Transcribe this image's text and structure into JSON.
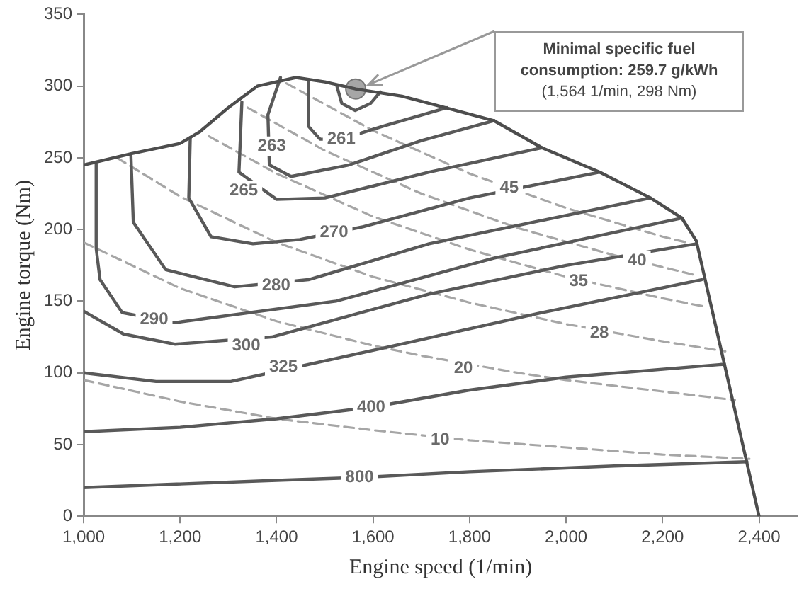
{
  "chart_data": {
    "type": "line",
    "xlabel": "Engine speed (1/min)",
    "ylabel": "Engine torque (Nm)",
    "xlim": [
      1000,
      2480
    ],
    "ylim": [
      0,
      350
    ],
    "xticks": [
      {
        "value": 1000,
        "label": "1,000"
      },
      {
        "value": 1200,
        "label": "1,200"
      },
      {
        "value": 1400,
        "label": "1,400"
      },
      {
        "value": 1600,
        "label": "1,600"
      },
      {
        "value": 1800,
        "label": "1,800"
      },
      {
        "value": 2000,
        "label": "2,000"
      },
      {
        "value": 2200,
        "label": "2,200"
      },
      {
        "value": 2400,
        "label": "2,400"
      }
    ],
    "yticks": [
      0,
      50,
      100,
      150,
      200,
      250,
      300,
      350
    ],
    "grid": false,
    "legend": false,
    "marker": "none",
    "line_style": "solid",
    "series": [
      {
        "color": "#4d4d4d",
        "x": [
          1000,
          1100,
          1200,
          1240,
          1300,
          1360,
          1440,
          1500,
          1564,
          1660,
          1750,
          1850,
          1950,
          2070,
          2175,
          2240,
          2270,
          2400
        ],
        "values": [
          245,
          253,
          260,
          268,
          285,
          300,
          306,
          303,
          298,
          293,
          285,
          276,
          257,
          240,
          222,
          208,
          192,
          0
        ]
      },
      {
        "color": "#595959",
        "x": [
          1525,
          1535,
          1563,
          1595,
          1615
        ],
        "values": [
          300,
          288,
          283,
          288,
          296
        ]
      },
      {
        "color": "#595959",
        "x": [
          1466,
          1466,
          1490,
          1534,
          1620,
          1753
        ],
        "values": [
          304,
          272,
          263,
          263,
          272,
          285
        ]
      },
      {
        "color": "#595959",
        "x": [
          1408,
          1382,
          1385,
          1430,
          1550,
          1700,
          1851
        ],
        "values": [
          306,
          280,
          245,
          237,
          245,
          262,
          276
        ]
      },
      {
        "color": "#595959",
        "x": [
          1328,
          1322,
          1400,
          1500,
          1716,
          1950
        ],
        "values": [
          289,
          240,
          221,
          222,
          240,
          257
        ]
      },
      {
        "color": "#595959",
        "x": [
          1221,
          1218,
          1264,
          1351,
          1448,
          1580,
          1800,
          2070
        ],
        "values": [
          264,
          222,
          195,
          190,
          193,
          202,
          222,
          240
        ]
      },
      {
        "color": "#595959",
        "x": [
          1098,
          1103,
          1170,
          1313,
          1466,
          1716,
          2175
        ],
        "values": [
          252,
          205,
          172,
          160,
          165,
          190,
          222
        ]
      },
      {
        "color": "#595959",
        "x": [
          1026,
          1026,
          1034,
          1080,
          1189,
          1523,
          1850,
          2241
        ],
        "values": [
          246,
          187,
          165,
          142,
          135,
          150,
          180,
          208
        ]
      },
      {
        "color": "#595959",
        "x": [
          1000,
          1083,
          1189,
          1390,
          1716,
          2000,
          2270
        ],
        "values": [
          143,
          127,
          120,
          125,
          155,
          175,
          190
        ]
      },
      {
        "color": "#595959",
        "x": [
          1000,
          1150,
          1305,
          1658,
          1950,
          2281
        ],
        "values": [
          100,
          94,
          94,
          120,
          142,
          165
        ]
      },
      {
        "color": "#595959",
        "x": [
          1000,
          1200,
          1400,
          1596,
          1800,
          2000,
          2328
        ],
        "values": [
          59,
          62,
          68,
          76,
          88,
          97,
          106
        ]
      },
      {
        "color": "#595959",
        "x": [
          1000,
          1400,
          1572,
          1800,
          2100,
          2375
        ],
        "values": [
          20,
          25,
          27,
          31,
          35,
          38
        ]
      },
      {
        "color": "#a6a6a6",
        "line_style": "dashed",
        "x": [
          1000,
          1200,
          1400,
          1600,
          1800,
          2000,
          2200,
          2380
        ],
        "values": [
          95,
          80,
          68,
          60,
          53,
          48,
          43,
          40
        ]
      },
      {
        "color": "#a6a6a6",
        "line_style": "dashed",
        "x": [
          1000,
          1200,
          1400,
          1600,
          1700,
          1900,
          2000,
          2200,
          2350
        ],
        "values": [
          191,
          159,
          136,
          119,
          112,
          100,
          95,
          87,
          81
        ]
      },
      {
        "color": "#a6a6a6",
        "line_style": "dashed",
        "x": [
          1069,
          1200,
          1400,
          1600,
          1800,
          2000,
          2200,
          2330
        ],
        "values": [
          250,
          223,
          191,
          167,
          149,
          134,
          122,
          115
        ]
      },
      {
        "color": "#a6a6a6",
        "line_style": "dashed",
        "x": [
          1260,
          1400,
          1600,
          1800,
          2000,
          2200,
          2290
        ],
        "values": [
          265,
          239,
          209,
          186,
          167,
          152,
          146
        ]
      },
      {
        "color": "#a6a6a6",
        "line_style": "dashed",
        "x": [
          1340,
          1500,
          1700,
          1900,
          2100,
          2270
        ],
        "values": [
          285,
          255,
          225,
          201,
          182,
          168
        ]
      },
      {
        "color": "#a6a6a6",
        "line_style": "dashed",
        "x": [
          1420,
          1600,
          1800,
          2000,
          2200,
          2250
        ],
        "values": [
          302,
          269,
          239,
          215,
          195,
          191
        ]
      },
      {
        "type": "scatter",
        "marker": "circle",
        "color": "#a6a6a6",
        "x": [
          1564
        ],
        "values": [
          298
        ]
      }
    ],
    "annotations": [
      "Minimal specific fuel consumption: 259.7 g/kWh",
      "(1,564 1/min, 298 Nm)",
      {
        "text": "261",
        "x": 1534,
        "y": 263
      },
      {
        "text": "263",
        "x": 1390,
        "y": 258
      },
      {
        "text": "265",
        "x": 1332,
        "y": 227
      },
      {
        "text": "270",
        "x": 1519,
        "y": 198
      },
      {
        "text": "280",
        "x": 1399,
        "y": 161
      },
      {
        "text": "290",
        "x": 1146,
        "y": 137
      },
      {
        "text": "300",
        "x": 1337,
        "y": 119
      },
      {
        "text": "325",
        "x": 1414,
        "y": 104
      },
      {
        "text": "400",
        "x": 1596,
        "y": 76
      },
      {
        "text": "800",
        "x": 1572,
        "y": 27
      },
      {
        "text": "45",
        "x": 1882,
        "y": 229
      },
      {
        "text": "40",
        "x": 2147,
        "y": 178
      },
      {
        "text": "35",
        "x": 2026,
        "y": 164
      },
      {
        "text": "28",
        "x": 2069,
        "y": 128
      },
      {
        "text": "20",
        "x": 1787,
        "y": 103
      },
      {
        "text": "10",
        "x": 1739,
        "y": 53
      }
    ]
  }
}
